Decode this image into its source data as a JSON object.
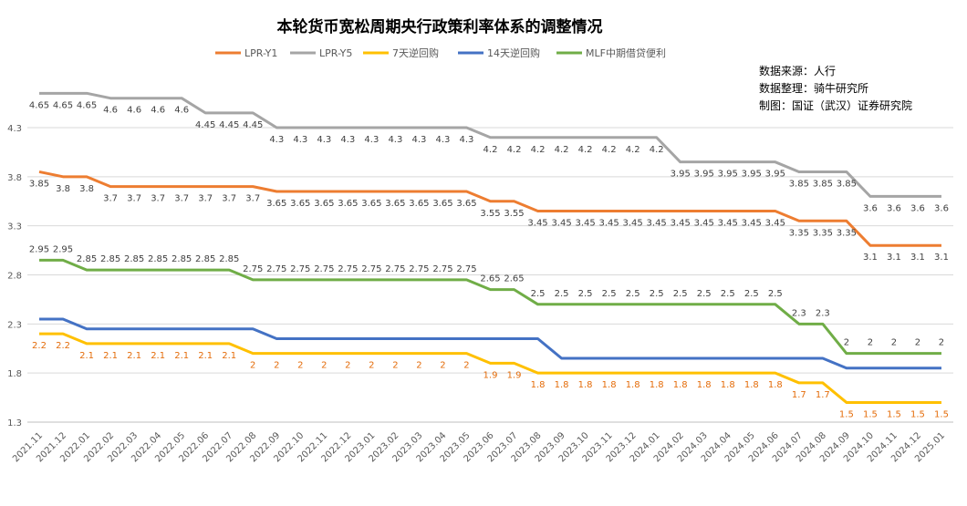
{
  "chart_data": {
    "type": "line",
    "title": "本轮货币宽松周期央行政策利率体系的调整情况",
    "categories": [
      "2021.11",
      "2021.12",
      "2022.01",
      "2022.02",
      "2022.03",
      "2022.04",
      "2022.05",
      "2022.06",
      "2022.07",
      "2022.08",
      "2022.09",
      "2022.10",
      "2022.11",
      "2022.12",
      "2023.01",
      "2023.02",
      "2023.03",
      "2023.04",
      "2023.05",
      "2023.06",
      "2023.07",
      "2023.08",
      "2023.09",
      "2023.10",
      "2023.11",
      "2023.12",
      "2024.01",
      "2024.02",
      "2024.03",
      "2024.04",
      "2024.05",
      "2024.06",
      "2024.07",
      "2024.08",
      "2024.09",
      "2024.10",
      "2024.11",
      "2024.12",
      "2025.01"
    ],
    "yticks": [
      1.3,
      1.8,
      2.3,
      2.8,
      3.3,
      3.8,
      4.3
    ],
    "ylim": [
      1.3,
      4.85
    ],
    "series": [
      {
        "name": "LPR-Y1",
        "color": "#ED7D31",
        "label_color": "#404040",
        "label_pos": "below",
        "values": [
          3.85,
          3.8,
          3.8,
          3.7,
          3.7,
          3.7,
          3.7,
          3.7,
          3.7,
          3.7,
          3.65,
          3.65,
          3.65,
          3.65,
          3.65,
          3.65,
          3.65,
          3.65,
          3.65,
          3.55,
          3.55,
          3.45,
          3.45,
          3.45,
          3.45,
          3.45,
          3.45,
          3.45,
          3.45,
          3.45,
          3.45,
          3.45,
          3.35,
          3.35,
          3.35,
          3.1,
          3.1,
          3.1,
          3.1
        ]
      },
      {
        "name": "LPR-Y5",
        "color": "#A5A5A5",
        "label_color": "#404040",
        "label_pos": "below",
        "values": [
          4.65,
          4.65,
          4.65,
          4.6,
          4.6,
          4.6,
          4.6,
          4.45,
          4.45,
          4.45,
          4.3,
          4.3,
          4.3,
          4.3,
          4.3,
          4.3,
          4.3,
          4.3,
          4.3,
          4.2,
          4.2,
          4.2,
          4.2,
          4.2,
          4.2,
          4.2,
          4.2,
          3.95,
          3.95,
          3.95,
          3.95,
          3.95,
          3.85,
          3.85,
          3.85,
          3.6,
          3.6,
          3.6,
          3.6
        ]
      },
      {
        "name": "7天逆回购",
        "color": "#FFC000",
        "label_color": "#E46C0A",
        "label_pos": "below",
        "values": [
          2.2,
          2.2,
          2.1,
          2.1,
          2.1,
          2.1,
          2.1,
          2.1,
          2.1,
          2,
          2,
          2,
          2,
          2,
          2,
          2,
          2,
          2,
          2,
          1.9,
          1.9,
          1.8,
          1.8,
          1.8,
          1.8,
          1.8,
          1.8,
          1.8,
          1.8,
          1.8,
          1.8,
          1.8,
          1.7,
          1.7,
          1.5,
          1.5,
          1.5,
          1.5,
          1.5
        ]
      },
      {
        "name": "14天逆回购",
        "color": "#4472C4",
        "label_color": "#404040",
        "label_pos": "none",
        "values": [
          2.35,
          2.35,
          2.25,
          2.25,
          2.25,
          2.25,
          2.25,
          2.25,
          2.25,
          2.25,
          2.15,
          2.15,
          2.15,
          2.15,
          2.15,
          2.15,
          2.15,
          2.15,
          2.15,
          2.15,
          2.15,
          2.15,
          1.95,
          1.95,
          1.95,
          1.95,
          1.95,
          1.95,
          1.95,
          1.95,
          1.95,
          1.95,
          1.95,
          1.95,
          1.85,
          1.85,
          1.85,
          1.85,
          1.85
        ]
      },
      {
        "name": "MLF中期借贷便利",
        "color": "#70AD47",
        "label_color": "#404040",
        "label_pos": "above",
        "values": [
          2.95,
          2.95,
          2.85,
          2.85,
          2.85,
          2.85,
          2.85,
          2.85,
          2.85,
          2.75,
          2.75,
          2.75,
          2.75,
          2.75,
          2.75,
          2.75,
          2.75,
          2.75,
          2.75,
          2.65,
          2.65,
          2.5,
          2.5,
          2.5,
          2.5,
          2.5,
          2.5,
          2.5,
          2.5,
          2.5,
          2.5,
          2.5,
          2.3,
          2.3,
          2,
          2,
          2,
          2,
          2
        ]
      }
    ],
    "legend_position": "top",
    "grid": true
  },
  "source_notes": [
    "数据来源：人行",
    "数据整理：骑牛研究所",
    "制图：国证（武汉）证券研究院"
  ]
}
